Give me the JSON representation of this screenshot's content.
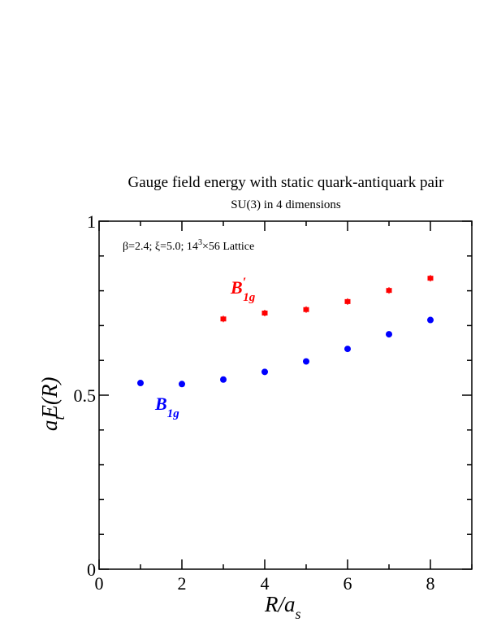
{
  "chart_data": {
    "type": "scatter",
    "title": "Gauge field energy with static quark-antiquark pair",
    "subtitle": "SU(3) in 4 dimensions",
    "annotation": {
      "pre": "β=2.4;  ξ=5.0;  14",
      "sup": "3",
      "post": "×56 Lattice"
    },
    "xlabel": {
      "main": "R/a",
      "sub": "s"
    },
    "ylabel": {
      "a": "a",
      "sub": "t",
      "rest": "E(R)"
    },
    "xlim": [
      0,
      9
    ],
    "ylim": [
      0,
      1
    ],
    "x_ticks": [
      0,
      2,
      4,
      6,
      8
    ],
    "y_ticks": [
      0,
      0.5,
      1
    ],
    "x_tick_labels": [
      "0",
      "2",
      "4",
      "6",
      "8"
    ],
    "y_tick_labels": [
      "0",
      "0.5",
      "1"
    ],
    "grid": false,
    "series": [
      {
        "label": {
          "main": "B",
          "prime": "′",
          "sub": "1g"
        },
        "color": "#ff0000",
        "marker": "square",
        "x": [
          3,
          4,
          5,
          6,
          7,
          8
        ],
        "y": [
          0.719,
          0.736,
          0.746,
          0.769,
          0.801,
          0.836
        ]
      },
      {
        "label": {
          "main": "B",
          "prime": "",
          "sub": "1g"
        },
        "color": "#0000ff",
        "marker": "circle",
        "x": [
          1,
          2,
          3,
          4,
          5,
          6,
          7,
          8
        ],
        "y": [
          0.535,
          0.532,
          0.545,
          0.567,
          0.597,
          0.633,
          0.675,
          0.716
        ]
      }
    ]
  }
}
